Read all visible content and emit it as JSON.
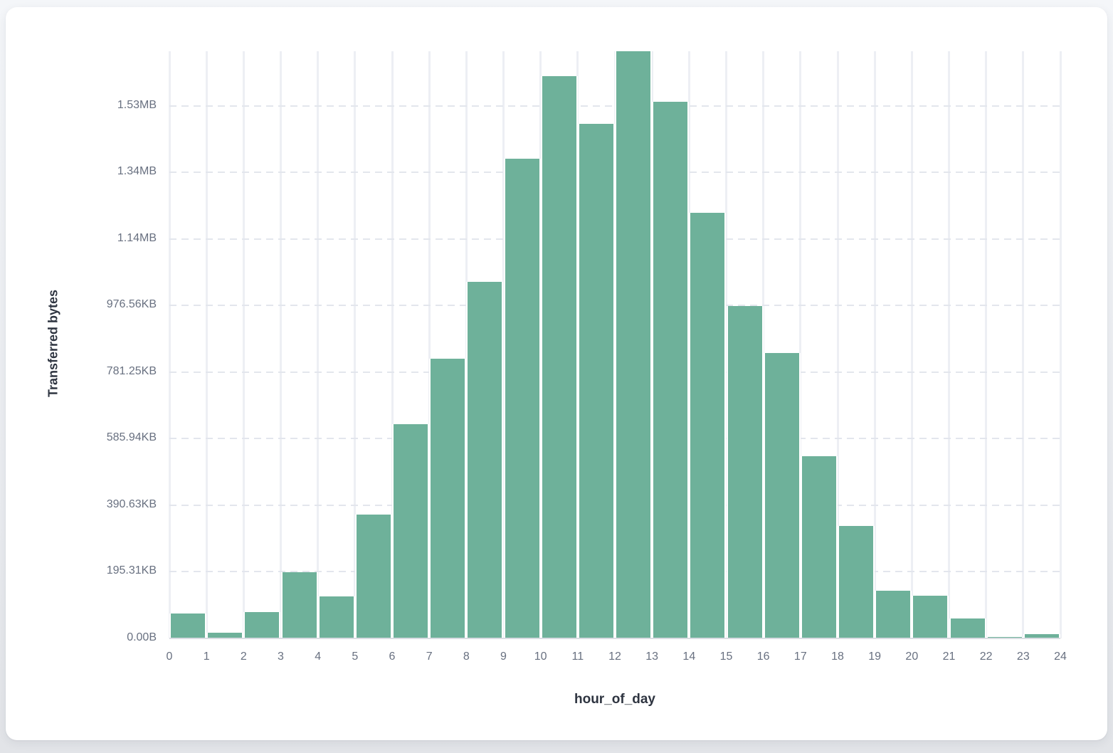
{
  "chart_data": {
    "type": "bar",
    "title": "",
    "xlabel": "hour_of_day",
    "ylabel": "Transferred bytes",
    "x_bin_edges": [
      0,
      1,
      2,
      3,
      4,
      5,
      6,
      7,
      8,
      9,
      10,
      11,
      12,
      13,
      14,
      15,
      16,
      17,
      18,
      19,
      20,
      21,
      22,
      23,
      24
    ],
    "categories": [
      0,
      1,
      2,
      3,
      4,
      5,
      6,
      7,
      8,
      9,
      10,
      11,
      12,
      13,
      14,
      15,
      16,
      17,
      18,
      19,
      20,
      21,
      22,
      23
    ],
    "values_bytes": [
      74000,
      16000,
      78000,
      198000,
      125000,
      371000,
      642000,
      839000,
      1070000,
      1442000,
      1689000,
      1545000,
      1764000,
      1613000,
      1279000,
      997000,
      856000,
      546000,
      337000,
      142000,
      127000,
      59000,
      4000,
      12000
    ],
    "ylim_bytes": [
      0,
      1764000
    ],
    "y_tick_step_bytes": 200000,
    "y_tick_values_bytes": [
      0,
      200000,
      400000,
      600000,
      800000,
      1000000,
      1200000,
      1400000,
      1600000
    ],
    "y_tick_labels": [
      "0.00B",
      "195.31KB",
      "390.63KB",
      "585.94KB",
      "781.25KB",
      "976.56KB",
      "1.14MB",
      "1.34MB",
      "1.53MB"
    ],
    "x_tick_labels": [
      "0",
      "1",
      "2",
      "3",
      "4",
      "5",
      "6",
      "7",
      "8",
      "9",
      "10",
      "11",
      "12",
      "13",
      "14",
      "15",
      "16",
      "17",
      "18",
      "19",
      "20",
      "21",
      "22",
      "23",
      "24"
    ],
    "grid": true,
    "legend": "none",
    "bar_color": "#6EB19A"
  },
  "axes": {
    "y_title": "Transferred bytes",
    "x_title": "hour_of_day"
  },
  "colors": {
    "bar": "#6EB19A",
    "vertical_grid": "#edeff4",
    "horizontal_grid": "#e3e6ed",
    "axis_line": "#dadde3",
    "tick_text": "#687080",
    "title_text": "#2e3440",
    "card_bg": "#ffffff",
    "page_bg": "#eef0f4"
  }
}
